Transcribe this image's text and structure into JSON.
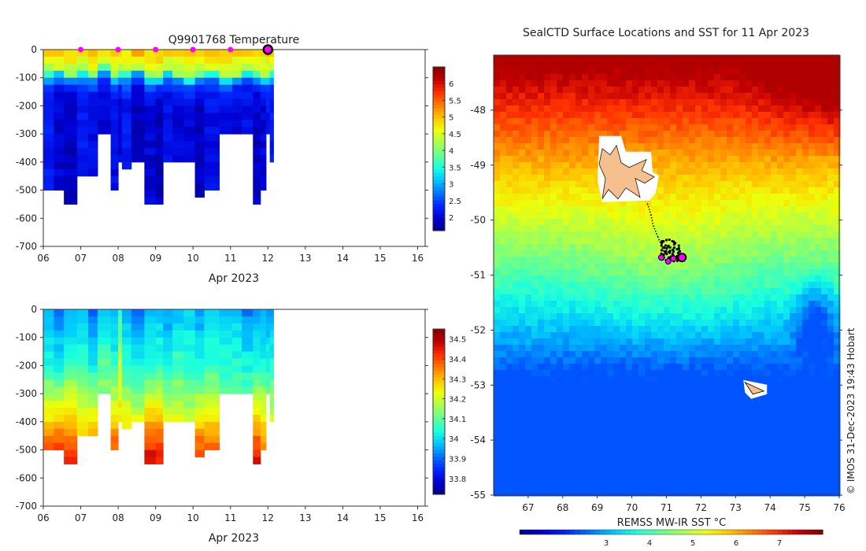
{
  "colors": {
    "jet": [
      "#00007f",
      "#0000d4",
      "#0026ff",
      "#0073ff",
      "#00c4ff",
      "#19ffdf",
      "#61ff96",
      "#a8ff4f",
      "#eeff09",
      "#ffc400",
      "#ff7a00",
      "#ff3000",
      "#c10000",
      "#7f0000"
    ],
    "marker_magenta": "#ff00ff",
    "land": "#f6c08e",
    "seal_track": "#000000"
  },
  "chart_data": [
    {
      "type": "heatmap",
      "panel": "temperature-profile",
      "title": "Q9901768  Temperature",
      "xlabel": "Apr 2023",
      "x_tick_labels": [
        "06",
        "07",
        "08",
        "09",
        "10",
        "11",
        "12",
        "13",
        "14",
        "15",
        "16"
      ],
      "xlim": [
        6,
        16.2
      ],
      "ylim": [
        -700,
        0
      ],
      "y_tick_labels": [
        "0",
        "-100",
        "-200",
        "-300",
        "-400",
        "-500",
        "-600",
        "-700"
      ],
      "y_ticks": [
        0,
        -100,
        -200,
        -300,
        -400,
        -500,
        -600,
        -700
      ],
      "colorbar": {
        "min": 1.6,
        "max": 6.5,
        "tick_labels": [
          "2",
          "2.5",
          "3",
          "3.5",
          "4",
          "4.5",
          "5",
          "5.5",
          "6"
        ],
        "ticks": [
          2,
          2.5,
          3,
          3.5,
          4,
          4.5,
          5,
          5.5,
          6
        ]
      },
      "profile_days": [
        6.0,
        6.28,
        6.55,
        6.9,
        7.2,
        7.45,
        7.8,
        8.0,
        8.1,
        8.35,
        8.7,
        9.0,
        9.2,
        9.45,
        9.75,
        10.05,
        10.3,
        10.7,
        11.05,
        11.3,
        11.6,
        11.8,
        11.95,
        12.05
      ],
      "profile_depths": [
        500,
        500,
        545,
        450,
        450,
        300,
        500,
        380,
        420,
        400,
        535,
        535,
        400,
        400,
        400,
        505,
        490,
        300,
        300,
        300,
        535,
        500,
        300,
        400
      ],
      "column_profiles": [
        {
          "surface": 5.0,
          "thermocline": 80,
          "deep": 2.2
        },
        {
          "surface": 5.1,
          "thermocline": 70,
          "deep": 2.0
        },
        {
          "surface": 5.0,
          "thermocline": 90,
          "deep": 1.9
        },
        {
          "surface": 4.9,
          "thermocline": 75,
          "deep": 2.2
        },
        {
          "surface": 5.2,
          "thermocline": 85,
          "deep": 2.1
        },
        {
          "surface": 5.0,
          "thermocline": 60,
          "deep": 2.0
        },
        {
          "surface": 5.1,
          "thermocline": 90,
          "deep": 2.1
        },
        {
          "surface": 5.0,
          "thermocline": 80,
          "deep": 2.0
        },
        {
          "surface": 4.9,
          "thermocline": 85,
          "deep": 2.2
        },
        {
          "surface": 5.2,
          "thermocline": 65,
          "deep": 1.9
        },
        {
          "surface": 5.0,
          "thermocline": 100,
          "deep": 2.0
        },
        {
          "surface": 5.1,
          "thermocline": 95,
          "deep": 1.9
        },
        {
          "surface": 5.0,
          "thermocline": 70,
          "deep": 2.1
        },
        {
          "surface": 4.9,
          "thermocline": 90,
          "deep": 2.0
        },
        {
          "surface": 5.1,
          "thermocline": 100,
          "deep": 2.0
        },
        {
          "surface": 5.0,
          "thermocline": 85,
          "deep": 1.9
        },
        {
          "surface": 5.2,
          "thermocline": 75,
          "deep": 2.1
        },
        {
          "surface": 5.0,
          "thermocline": 100,
          "deep": 2.0
        },
        {
          "surface": 5.0,
          "thermocline": 90,
          "deep": 2.0
        },
        {
          "surface": 5.1,
          "thermocline": 70,
          "deep": 2.1
        },
        {
          "surface": 5.0,
          "thermocline": 85,
          "deep": 1.9
        },
        {
          "surface": 4.9,
          "thermocline": 100,
          "deep": 2.0
        },
        {
          "surface": 5.1,
          "thermocline": 90,
          "deep": 2.2
        },
        {
          "surface": 5.0,
          "thermocline": 80,
          "deep": 2.2
        }
      ],
      "surface_markers_days": [
        7,
        8,
        9,
        10,
        11
      ],
      "current_marker_day": 12
    },
    {
      "type": "heatmap",
      "panel": "salinity-profile",
      "title": "",
      "xlabel": "Apr 2023",
      "x_tick_labels": [
        "06",
        "07",
        "08",
        "09",
        "10",
        "11",
        "12",
        "13",
        "14",
        "15",
        "16"
      ],
      "xlim": [
        6,
        16.2
      ],
      "ylim": [
        -700,
        0
      ],
      "y_tick_labels": [
        "0",
        "-100",
        "-200",
        "-300",
        "-400",
        "-500",
        "-600",
        "-700"
      ],
      "y_ticks": [
        0,
        -100,
        -200,
        -300,
        -400,
        -500,
        -600,
        -700
      ],
      "colorbar": {
        "min": 33.72,
        "max": 34.55,
        "tick_labels": [
          "33.8",
          "33.9",
          "34",
          "34.1",
          "34.2",
          "34.3",
          "34.4",
          "34.5"
        ],
        "ticks": [
          33.8,
          33.9,
          34.0,
          34.1,
          34.2,
          34.3,
          34.4,
          34.5
        ]
      },
      "column_profiles": [
        {
          "surface": 33.95,
          "top": 34.05,
          "deep": 34.42
        },
        {
          "surface": 33.92,
          "top": 34.02,
          "deep": 34.45
        },
        {
          "surface": 33.95,
          "top": 34.08,
          "deep": 34.44
        },
        {
          "surface": 33.98,
          "top": 34.05,
          "deep": 34.36
        },
        {
          "surface": 33.9,
          "top": 34.03,
          "deep": 34.4
        },
        {
          "surface": 34.0,
          "top": 34.1,
          "deep": 34.25
        },
        {
          "surface": 33.95,
          "top": 34.05,
          "deep": 34.42
        },
        {
          "surface": 34.05,
          "top": 34.2,
          "deep": 34.3
        },
        {
          "surface": 33.96,
          "top": 34.05,
          "deep": 34.36
        },
        {
          "surface": 33.92,
          "top": 34.03,
          "deep": 34.33
        },
        {
          "surface": 33.95,
          "top": 34.05,
          "deep": 34.46
        },
        {
          "surface": 33.97,
          "top": 34.06,
          "deep": 34.45
        },
        {
          "surface": 33.93,
          "top": 34.04,
          "deep": 34.33
        },
        {
          "surface": 33.95,
          "top": 34.08,
          "deep": 34.32
        },
        {
          "surface": 34.0,
          "top": 34.05,
          "deep": 34.3
        },
        {
          "surface": 33.94,
          "top": 34.03,
          "deep": 34.42
        },
        {
          "surface": 33.97,
          "top": 34.06,
          "deep": 34.4
        },
        {
          "surface": 33.95,
          "top": 34.05,
          "deep": 34.25
        },
        {
          "surface": 33.98,
          "top": 34.05,
          "deep": 34.25
        },
        {
          "surface": 33.92,
          "top": 34.03,
          "deep": 34.25
        },
        {
          "surface": 33.95,
          "top": 34.05,
          "deep": 34.45
        },
        {
          "surface": 33.96,
          "top": 34.04,
          "deep": 34.4
        },
        {
          "surface": 33.93,
          "top": 34.04,
          "deep": 34.25
        },
        {
          "surface": 33.95,
          "top": 34.05,
          "deep": 34.3
        }
      ]
    },
    {
      "type": "heatmap",
      "panel": "sst-map",
      "title": "SealCTD Surface Locations and SST for 11 Apr 2023",
      "xlabel": "",
      "x_tick_labels": [
        "67",
        "68",
        "69",
        "70",
        "71",
        "72",
        "73",
        "74",
        "75",
        "76"
      ],
      "x_ticks": [
        67,
        68,
        69,
        70,
        71,
        72,
        73,
        74,
        75,
        76
      ],
      "y_tick_labels": [
        "-48",
        "-49",
        "-50",
        "-51",
        "-52",
        "-53",
        "-54",
        "-55"
      ],
      "y_ticks": [
        -48,
        -49,
        -50,
        -51,
        -52,
        -53,
        -54,
        -55
      ],
      "xlim": [
        66.0,
        76.0
      ],
      "ylim": [
        -55.0,
        -47.0
      ],
      "colorbar": {
        "label": "REMSS MW-IR SST °C",
        "min": 1.0,
        "max": 8.0,
        "tick_labels": [
          "3",
          "4",
          "5",
          "6",
          "7"
        ],
        "ticks": [
          3,
          4,
          5,
          6,
          7
        ]
      },
      "kerguelen_island_center": [
        69.6,
        -49.3
      ],
      "heard_island_center": [
        73.5,
        -53.05
      ],
      "seal_track_lon": [
        70.45,
        70.55,
        70.62,
        70.75,
        70.85,
        70.9,
        71.0,
        71.05,
        71.12,
        71.2,
        71.3,
        71.45
      ],
      "seal_track_lat": [
        -49.7,
        -49.9,
        -50.1,
        -50.3,
        -50.45,
        -50.55,
        -50.62,
        -50.68,
        -50.72,
        -50.7,
        -50.65,
        -50.68
      ],
      "surface_positions_lon": [
        70.85,
        71.05,
        71.2,
        71.45
      ],
      "surface_positions_lat": [
        -50.68,
        -50.75,
        -50.7,
        -50.68
      ],
      "current_position": [
        71.45,
        -50.68
      ]
    }
  ],
  "labels": {
    "credit": "© IMOS 31-Dec-2023 19:43 Hobart"
  }
}
